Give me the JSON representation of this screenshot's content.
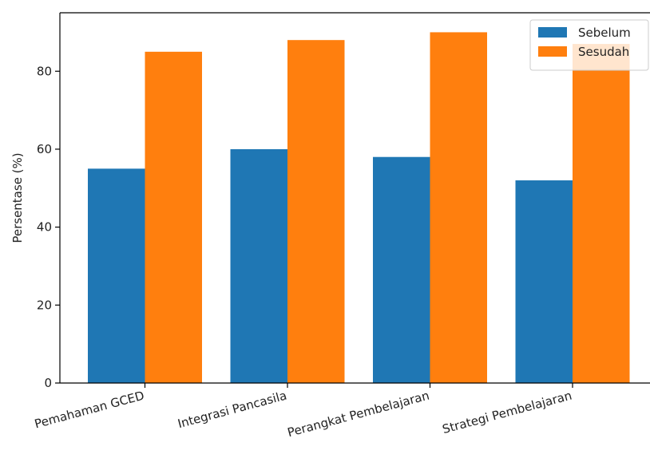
{
  "chart_data": {
    "type": "bar",
    "title": "",
    "xlabel": "",
    "ylabel": "Persentase (%)",
    "ylim": [
      0,
      95
    ],
    "yticks": [
      0,
      20,
      40,
      60,
      80
    ],
    "grid": false,
    "legend_position": "top-right",
    "categories": [
      "Pemahaman GCED",
      "Integrasi Pancasila",
      "Perangkat Pembelajaran",
      "Strategi Pembelajaran"
    ],
    "series": [
      {
        "name": "Sebelum",
        "color": "#1f77b4",
        "values": [
          55,
          60,
          58,
          52
        ]
      },
      {
        "name": "Sesudah",
        "color": "#ff7f0e",
        "values": [
          85,
          88,
          90,
          87
        ]
      }
    ]
  }
}
